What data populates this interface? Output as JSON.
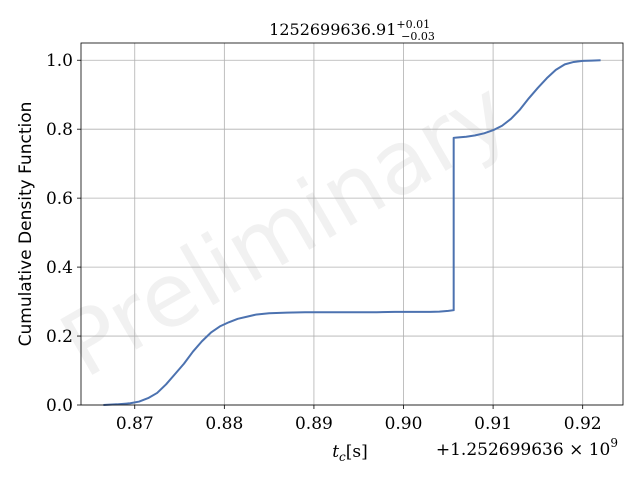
{
  "chart_data": {
    "type": "line",
    "title_main": "1252699636.91",
    "title_sup": "+0.01",
    "title_sub": "−0.03",
    "xlabel_var": "t",
    "xlabel_sub": "c",
    "xlabel_unit": "[s]",
    "ylabel": "Cumulative Density Function",
    "offset_text": "+1.252699636 × 10",
    "offset_exp": "9",
    "watermark": "Preliminary",
    "xlim": [
      0.864,
      0.9245
    ],
    "ylim": [
      0.0,
      1.05
    ],
    "xticks": [
      0.87,
      0.88,
      0.89,
      0.9,
      0.91,
      0.92
    ],
    "xtick_labels": [
      "0.87",
      "0.88",
      "0.89",
      "0.90",
      "0.91",
      "0.92"
    ],
    "yticks": [
      0.0,
      0.2,
      0.4,
      0.6,
      0.8,
      1.0
    ],
    "ytick_labels": [
      "0.0",
      "0.2",
      "0.4",
      "0.6",
      "0.8",
      "1.0"
    ],
    "grid": true,
    "color": "#4c72b0",
    "series": [
      {
        "x": [
          0.8665,
          0.868,
          0.8695,
          0.8705,
          0.8715,
          0.8725,
          0.8735,
          0.8745,
          0.8755,
          0.8765,
          0.8775,
          0.8785,
          0.8795,
          0.8805,
          0.8815,
          0.8825,
          0.8835,
          0.885,
          0.887,
          0.889,
          0.891,
          0.893,
          0.895,
          0.897,
          0.899,
          0.901,
          0.903,
          0.904,
          0.905,
          0.9056,
          0.9056,
          0.906,
          0.907,
          0.908,
          0.909,
          0.91,
          0.911,
          0.912,
          0.913,
          0.914,
          0.915,
          0.916,
          0.917,
          0.918,
          0.919,
          0.92,
          0.921,
          0.922
        ],
        "y": [
          0.0,
          0.002,
          0.005,
          0.01,
          0.02,
          0.035,
          0.06,
          0.09,
          0.12,
          0.155,
          0.185,
          0.21,
          0.228,
          0.24,
          0.25,
          0.256,
          0.262,
          0.266,
          0.268,
          0.269,
          0.269,
          0.269,
          0.269,
          0.269,
          0.27,
          0.27,
          0.27,
          0.271,
          0.273,
          0.275,
          0.775,
          0.776,
          0.778,
          0.782,
          0.788,
          0.797,
          0.81,
          0.83,
          0.857,
          0.89,
          0.92,
          0.948,
          0.972,
          0.988,
          0.995,
          0.998,
          0.999,
          1.0
        ]
      }
    ]
  }
}
